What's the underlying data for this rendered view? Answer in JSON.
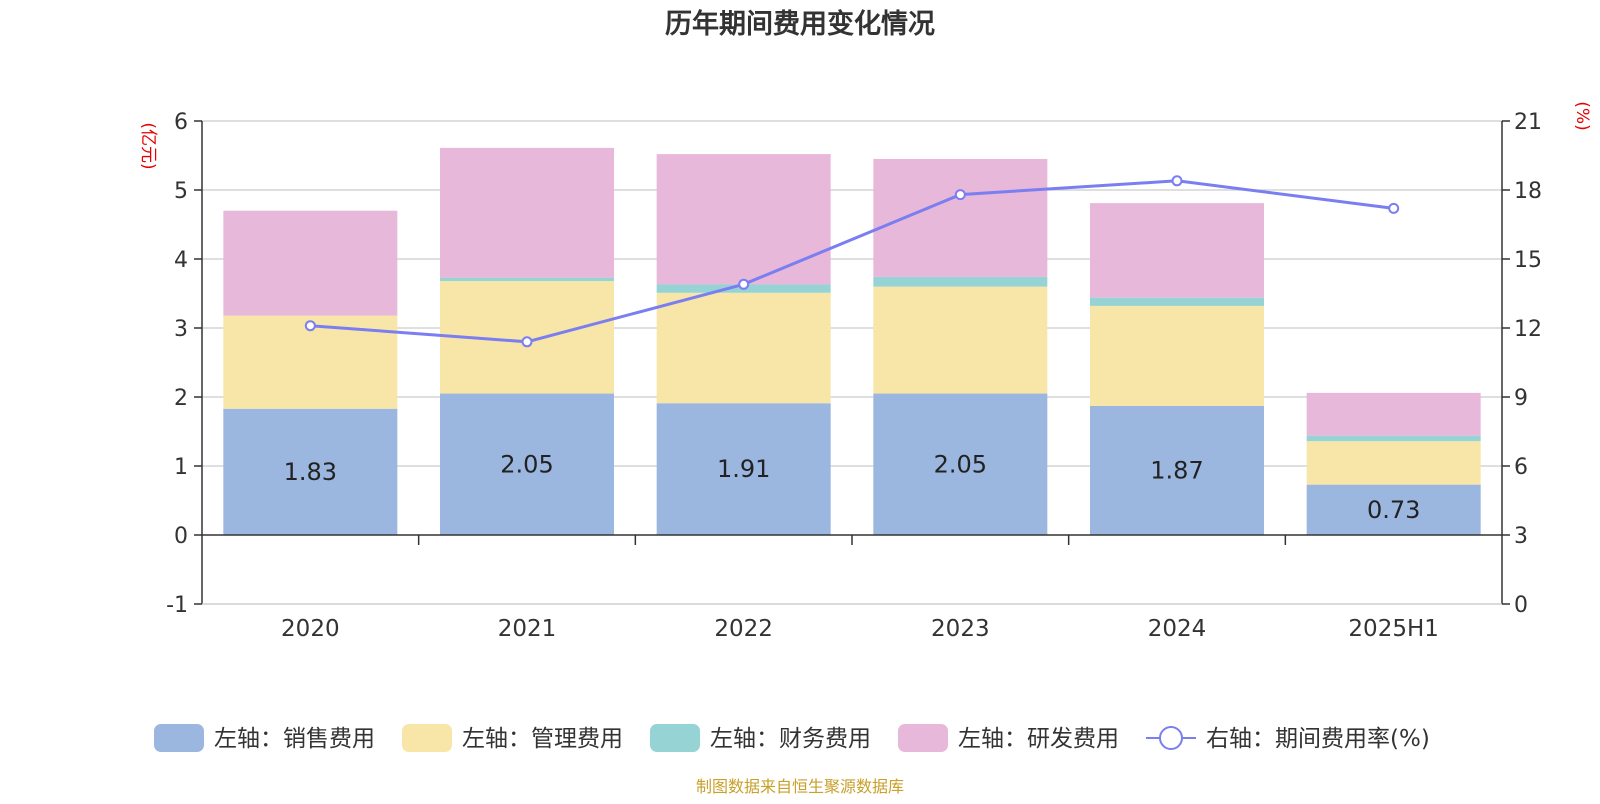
{
  "chart_data": {
    "type": "bar",
    "stacked": true,
    "title": "历年期间费用变化情况",
    "source": "制图数据来自恒生聚源数据库",
    "categories": [
      "2020",
      "2021",
      "2022",
      "2023",
      "2024",
      "2025H1"
    ],
    "y_left": {
      "unit": "(亿元)",
      "ylim": [
        -1,
        6
      ],
      "ticks": [
        "-1",
        "0",
        "1",
        "2",
        "3",
        "4",
        "5",
        "6"
      ]
    },
    "y_right": {
      "unit": "(%)",
      "ylim": [
        0,
        21
      ],
      "ticks": [
        "0",
        "3",
        "6",
        "9",
        "12",
        "15",
        "18",
        "21"
      ]
    },
    "grid": true,
    "legend_position": "bottom",
    "series": [
      {
        "name": "左轴：销售费用",
        "type": "bar",
        "axis": "left",
        "color": "#9bb7e0",
        "values": [
          1.83,
          2.05,
          1.91,
          2.05,
          1.87,
          0.73
        ],
        "labels": [
          "1.83",
          "2.05",
          "1.91",
          "2.05",
          "1.87",
          "0.73"
        ]
      },
      {
        "name": "左轴：管理费用",
        "type": "bar",
        "axis": "left",
        "color": "#f7e6a8",
        "values": [
          1.35,
          1.63,
          1.6,
          1.55,
          1.45,
          0.63
        ]
      },
      {
        "name": "左轴：财务费用",
        "type": "bar",
        "axis": "left",
        "color": "#96d3d4",
        "values": [
          0.0,
          0.05,
          0.12,
          0.14,
          0.12,
          0.08
        ]
      },
      {
        "name": "左轴：研发费用",
        "type": "bar",
        "axis": "left",
        "color": "#e7b8d9",
        "values": [
          1.52,
          1.88,
          1.89,
          1.71,
          1.37,
          0.62
        ]
      },
      {
        "name": "右轴：期间费用率(%)",
        "type": "line",
        "axis": "right",
        "color": "#7b7ef0",
        "values": [
          12.1,
          11.4,
          13.9,
          17.8,
          18.4,
          17.2
        ]
      }
    ]
  }
}
